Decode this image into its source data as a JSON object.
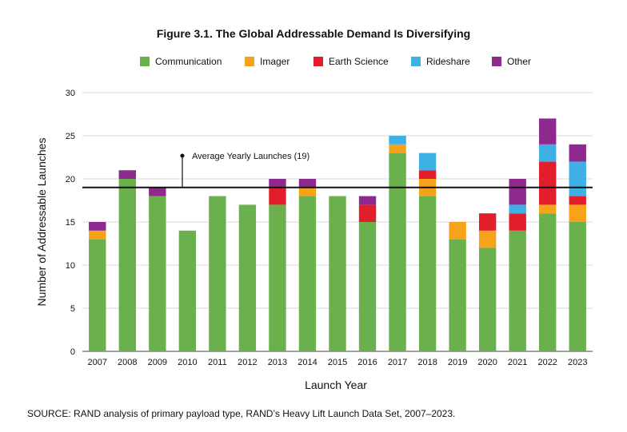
{
  "chart_data": {
    "type": "bar",
    "stacked": true,
    "title": "Figure 3.1. The Global Addressable Demand Is Diversifying",
    "xlabel": "Launch Year",
    "ylabel": "Number of Addressable Launches",
    "ylim": [
      0,
      30
    ],
    "yticks": [
      "0",
      "5",
      "10",
      "15",
      "20",
      "25",
      "30"
    ],
    "categories": [
      "2007",
      "2008",
      "2009",
      "2010",
      "2011",
      "2012",
      "2013",
      "2014",
      "2015",
      "2016",
      "2017",
      "2018",
      "2019",
      "2020",
      "2021",
      "2022",
      "2023"
    ],
    "series": [
      {
        "name": "Communication",
        "color": "#6ab04c",
        "values": [
          13,
          20,
          18,
          14,
          18,
          17,
          17,
          18,
          18,
          15,
          23,
          18,
          13,
          12,
          14,
          16,
          15
        ]
      },
      {
        "name": "Imager",
        "color": "#f7a21b",
        "values": [
          1,
          0,
          0,
          0,
          0,
          0,
          0,
          1,
          0,
          0,
          1,
          2,
          2,
          2,
          0,
          1,
          2
        ]
      },
      {
        "name": "Earth Science",
        "color": "#e31e2c",
        "values": [
          0,
          0,
          0,
          0,
          0,
          0,
          2,
          0,
          0,
          2,
          0,
          1,
          0,
          2,
          2,
          5,
          1
        ]
      },
      {
        "name": "Rideshare",
        "color": "#3fb0e6",
        "values": [
          0,
          0,
          0,
          0,
          0,
          0,
          0,
          0,
          0,
          0,
          1,
          2,
          0,
          0,
          1,
          2,
          4
        ]
      },
      {
        "name": "Other",
        "color": "#8e2a8e",
        "values": [
          1,
          1,
          1,
          0,
          0,
          0,
          1,
          1,
          0,
          1,
          0,
          0,
          0,
          0,
          3,
          3,
          2
        ]
      }
    ],
    "reference_line": {
      "value": 19,
      "label": "Average Yearly Launches (19)"
    },
    "grid": true,
    "legend_position": "top"
  },
  "source": "SOURCE: RAND analysis of primary payload type, RAND’s Heavy Lift Launch Data Set, 2007–2023."
}
